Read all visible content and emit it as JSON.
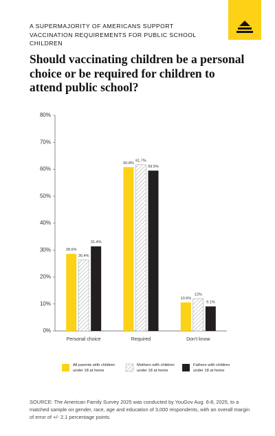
{
  "kicker": "A SUPERMAJORITY OF AMERICANS SUPPORT VACCINATION REQUIREMENTS FOR PUBLIC SCHOOL CHILDREN",
  "source": "SOURCE: The American Family Survey 2025 was conducted by YouGov Aug. 6-8, 2025, to a matched sample on gender, race, age and education of 3,000 respondents, with an overall margin of error of +/- 2.1 percentage points.",
  "chart_data": {
    "type": "bar",
    "title": "Should vaccinating children be a personal choice or be required for children to attend public school?",
    "categories": [
      "Personal choice",
      "Required",
      "Don't know"
    ],
    "series": [
      {
        "name": "All parents with children under 18 at home",
        "color": "#fcd116",
        "values": [
          28.6,
          60.8,
          10.6
        ],
        "value_labels": [
          "28.6%",
          "60.8%",
          "10.6%"
        ]
      },
      {
        "name": "Mothers with children under 18 at home",
        "color": "#ffffff",
        "pattern": "hatch",
        "values": [
          26.4,
          61.7,
          12
        ],
        "value_labels": [
          "26.4%",
          "61.7%",
          "12%"
        ]
      },
      {
        "name": "Fathers with children under 18 at home",
        "color": "#231f20",
        "values": [
          31.4,
          59.5,
          9.1
        ],
        "value_labels": [
          "31.4%",
          "59.5%",
          "9.1%"
        ]
      }
    ],
    "ylim": [
      0,
      80
    ],
    "yticks": [
      {
        "value": 0,
        "label": "0%"
      },
      {
        "value": 10,
        "label": "10%"
      },
      {
        "value": 20,
        "label": "20%"
      },
      {
        "value": 30,
        "label": "30%"
      },
      {
        "value": 40,
        "label": "40%"
      },
      {
        "value": 50,
        "label": "50%"
      },
      {
        "value": 60,
        "label": "60%"
      },
      {
        "value": 70,
        "label": "70%"
      },
      {
        "value": 80,
        "label": "80%"
      }
    ],
    "grid": false
  }
}
